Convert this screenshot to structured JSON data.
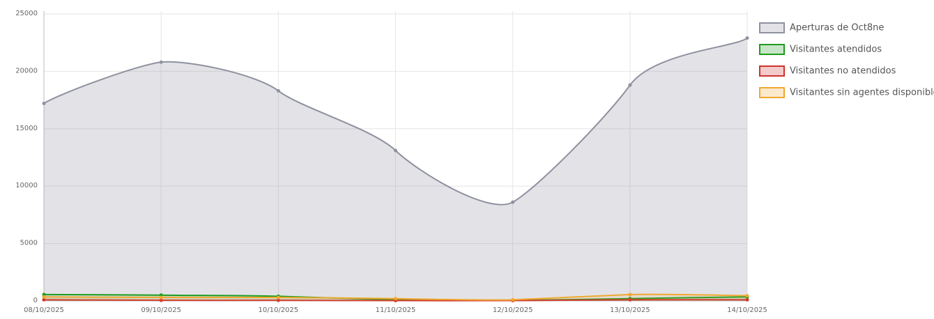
{
  "chart_data": {
    "type": "area",
    "x": [
      "08/10/2025",
      "09/10/2025",
      "10/10/2025",
      "11/10/2025",
      "12/10/2025",
      "13/10/2025",
      "14/10/2025"
    ],
    "series": [
      {
        "name": "Aperturas de Oct8ne",
        "color": "#8e919e",
        "values": [
          17200,
          20800,
          18300,
          13100,
          8600,
          18800,
          22900
        ]
      },
      {
        "name": "Visitantes atendidos",
        "color": "#1e9b1e",
        "values": [
          550,
          500,
          400,
          100,
          50,
          200,
          350
        ]
      },
      {
        "name": "Visitantes no atendidos",
        "color": "#d0312d",
        "values": [
          100,
          50,
          50,
          30,
          30,
          100,
          100
        ]
      },
      {
        "name": "Visitantes sin agentes disponibles",
        "color": "#f0a830",
        "values": [
          350,
          300,
          300,
          200,
          100,
          550,
          450
        ]
      }
    ],
    "ylim": [
      0,
      25000
    ],
    "yticks": [
      0,
      5000,
      10000,
      15000,
      20000,
      25000
    ],
    "grid": true,
    "legend": "right"
  }
}
